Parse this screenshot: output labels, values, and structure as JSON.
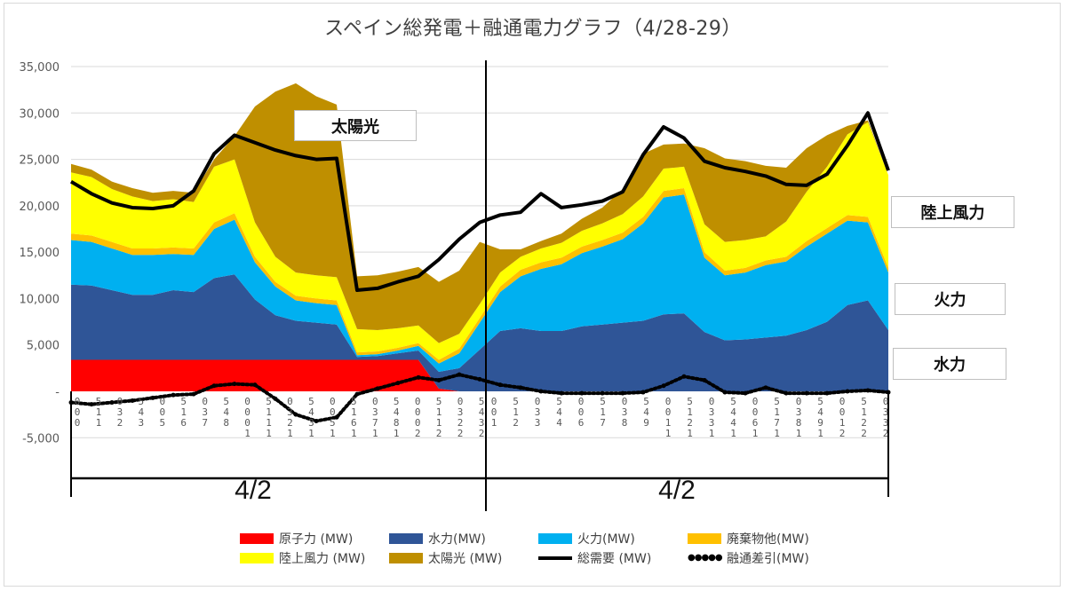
{
  "title": "スペイン総発電＋融通電力グラフ（4/28-29）",
  "chart_data": {
    "type": "area",
    "title": "スペイン総発電＋融通電力グラフ（4/28-29）",
    "xlabel": "",
    "ylabel": "",
    "ylim": [
      -5000,
      35000
    ],
    "yticks": [
      {
        "value": 35000,
        "label": "35,000"
      },
      {
        "value": 30000,
        "label": "30,000"
      },
      {
        "value": 25000,
        "label": "25,000"
      },
      {
        "value": 20000,
        "label": "20,000"
      },
      {
        "value": 15000,
        "label": "15,000"
      },
      {
        "value": 10000,
        "label": "10,000"
      },
      {
        "value": 5000,
        "label": "5,000"
      },
      {
        "value": 0,
        "label": "-"
      },
      {
        "value": -5000,
        "label": "-5,000"
      }
    ],
    "grid": true,
    "legend_position": "bottom",
    "x_day_labels": [
      "4/2",
      "4/2"
    ],
    "x_tick_labels": [
      "0:00",
      "1:15",
      "2:30",
      "3:45",
      "5:00",
      "6:15",
      "7:30",
      "8:45",
      "10:00",
      "11:15",
      "12:30",
      "13:45",
      "15:00",
      "16:15",
      "17:30",
      "18:45",
      "20:00",
      "21:15",
      "22:30",
      "23:45",
      "1:00",
      "2:15",
      "3:30",
      "4:45",
      "6:00",
      "7:15",
      "8:30",
      "9:45",
      "11:00",
      "12:15",
      "13:30",
      "14:45",
      "16:00",
      "17:15",
      "18:30",
      "19:45",
      "21:00",
      "22:15",
      "23:30"
    ],
    "x": [
      0,
      1,
      2,
      3,
      4,
      5,
      6,
      7,
      8,
      9,
      10,
      11,
      12,
      13,
      14,
      15,
      16,
      17,
      18,
      19,
      20,
      21,
      22,
      23,
      24,
      25,
      26,
      27,
      28,
      29,
      30,
      31,
      32,
      33,
      34,
      35,
      36,
      37,
      38,
      39,
      40
    ],
    "series": [
      {
        "name": "原子力 (MW)",
        "color": "#ff0000",
        "kind": "stack",
        "values": [
          3400,
          3400,
          3400,
          3400,
          3400,
          3400,
          3400,
          3400,
          3400,
          3400,
          3400,
          3400,
          3400,
          3400,
          3400,
          3400,
          3400,
          3400,
          300,
          0,
          0,
          0,
          0,
          0,
          0,
          0,
          0,
          0,
          0,
          0,
          0,
          0,
          0,
          0,
          0,
          0,
          0,
          0,
          0,
          0,
          0
        ]
      },
      {
        "name": "水力(MW)",
        "color": "#2f5597",
        "kind": "stack",
        "values": [
          8100,
          8000,
          7500,
          7000,
          7000,
          7500,
          7300,
          8800,
          9200,
          6500,
          4800,
          4200,
          4000,
          3800,
          300,
          400,
          700,
          1000,
          1800,
          2500,
          4500,
          6500,
          6800,
          6500,
          6500,
          7000,
          7200,
          7400,
          7600,
          8300,
          8400,
          6400,
          5500,
          5600,
          5800,
          6000,
          6600,
          7500,
          9300,
          9800,
          6600
        ]
      },
      {
        "name": "火力(MW)",
        "color": "#00b0f0",
        "kind": "stack",
        "values": [
          4800,
          4700,
          4500,
          4300,
          4300,
          3900,
          4000,
          5300,
          5900,
          4000,
          3100,
          2200,
          2100,
          2100,
          200,
          200,
          300,
          500,
          900,
          1600,
          2900,
          4200,
          5600,
          6700,
          7200,
          7900,
          8400,
          9000,
          10500,
          12600,
          12800,
          8000,
          7000,
          7200,
          7800,
          8000,
          9000,
          9500,
          9100,
          8400,
          6200
        ]
      },
      {
        "name": "廃棄物他(MW)",
        "color": "#ffc000",
        "kind": "stack",
        "values": [
          700,
          700,
          700,
          700,
          700,
          700,
          700,
          700,
          700,
          600,
          500,
          500,
          500,
          500,
          300,
          300,
          300,
          300,
          400,
          500,
          500,
          600,
          700,
          700,
          700,
          700,
          700,
          700,
          700,
          700,
          700,
          600,
          500,
          500,
          500,
          500,
          600,
          600,
          600,
          600,
          500
        ]
      },
      {
        "name": "陸上風力 (MW)",
        "color": "#ffff00",
        "kind": "stack",
        "values": [
          6600,
          6300,
          5700,
          5600,
          5100,
          5200,
          5000,
          6000,
          5800,
          3700,
          2700,
          2500,
          2500,
          2500,
          2500,
          2300,
          2100,
          1900,
          1800,
          1600,
          1500,
          1500,
          1400,
          1500,
          1600,
          1700,
          1800,
          2000,
          2200,
          2400,
          2300,
          3000,
          3100,
          3000,
          2600,
          3800,
          5300,
          6600,
          8700,
          10200,
          10000
        ]
      },
      {
        "name": "太陽光 (MW)",
        "color": "#bf8f00",
        "kind": "stack",
        "values": [
          900,
          800,
          800,
          900,
          900,
          900,
          1000,
          800,
          2500,
          12500,
          17800,
          20400,
          19300,
          18600,
          5700,
          5900,
          6100,
          6300,
          6600,
          6800,
          6700,
          2500,
          800,
          800,
          1000,
          1300,
          1700,
          2700,
          4600,
          2600,
          2500,
          8200,
          9000,
          8500,
          7600,
          5800,
          4700,
          3400,
          900,
          200,
          0
        ]
      },
      {
        "name": "総需要 (MW)",
        "color": "#000000",
        "kind": "line",
        "values": [
          22600,
          21300,
          20300,
          19800,
          19700,
          20000,
          21600,
          25600,
          27600,
          26800,
          26000,
          25400,
          25000,
          25100,
          10900,
          11100,
          11800,
          12400,
          14200,
          16400,
          18200,
          19000,
          19300,
          21300,
          19800,
          20100,
          20500,
          21500,
          25500,
          28500,
          27300,
          24800,
          24100,
          23700,
          23200,
          22300,
          22200,
          23400,
          26500,
          30000,
          23800
        ]
      },
      {
        "name": "融通差引(MW)",
        "color": "#000000",
        "kind": "dotted",
        "values": [
          -1200,
          -1400,
          -1200,
          -1000,
          -700,
          -400,
          -300,
          600,
          800,
          700,
          -800,
          -2500,
          -3200,
          -2800,
          -300,
          300,
          900,
          1500,
          1200,
          1800,
          1300,
          700,
          400,
          0,
          -200,
          -200,
          -200,
          -200,
          -100,
          600,
          1600,
          1200,
          -100,
          -200,
          400,
          -200,
          -200,
          -200,
          0,
          100,
          -100
        ]
      }
    ]
  },
  "annotations": {
    "solar": "太陽光",
    "wind": "陸上風力",
    "thermal": "火力",
    "hydro": "水力"
  },
  "legend": {
    "items": [
      {
        "label": "原子力 (MW)",
        "color": "#ff0000",
        "kind": "swatch"
      },
      {
        "label": "水力(MW)",
        "color": "#2f5597",
        "kind": "swatch"
      },
      {
        "label": "火力(MW)",
        "color": "#00b0f0",
        "kind": "swatch"
      },
      {
        "label": "廃棄物他(MW)",
        "color": "#ffc000",
        "kind": "swatch"
      },
      {
        "label": "陸上風力 (MW)",
        "color": "#ffff00",
        "kind": "swatch"
      },
      {
        "label": "太陽光 (MW)",
        "color": "#bf8f00",
        "kind": "swatch"
      },
      {
        "label": "総需要 (MW)",
        "color": "#000000",
        "kind": "line"
      },
      {
        "label": "融通差引(MW)",
        "color": "#000000",
        "kind": "dots"
      }
    ],
    "dots_glyph": "●●●●●"
  }
}
